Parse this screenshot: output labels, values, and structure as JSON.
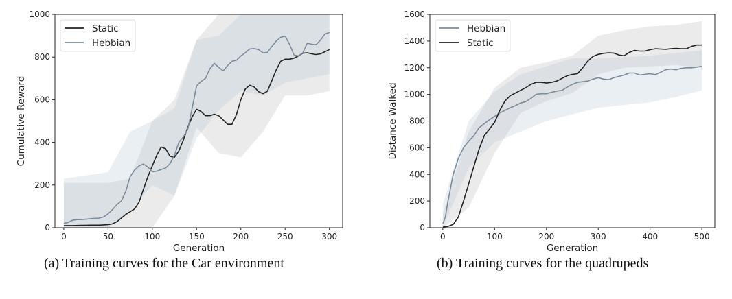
{
  "chart_data": [
    {
      "type": "line",
      "caption": "(a) Training curves for the Car environment",
      "xlabel": "Generation",
      "ylabel": "Cumulative Reward",
      "xlim": [
        -10,
        315
      ],
      "ylim": [
        0,
        1000
      ],
      "xticks": [
        0,
        50,
        100,
        150,
        200,
        250,
        300
      ],
      "yticks": [
        0,
        200,
        400,
        600,
        800,
        1000
      ],
      "grid": false,
      "legend": "top-left",
      "series": [
        {
          "name": "Static",
          "color": "#222222",
          "band_color": "#b8b8b8",
          "x": [
            0,
            10,
            20,
            30,
            40,
            50,
            55,
            60,
            65,
            70,
            75,
            80,
            85,
            90,
            95,
            100,
            105,
            110,
            115,
            120,
            125,
            130,
            135,
            140,
            145,
            150,
            155,
            160,
            165,
            170,
            175,
            180,
            185,
            190,
            195,
            200,
            205,
            210,
            215,
            220,
            225,
            230,
            235,
            240,
            245,
            250,
            255,
            260,
            265,
            270,
            275,
            280,
            285,
            290,
            300
          ],
          "y": [
            10,
            10,
            11,
            12,
            12,
            14,
            18,
            28,
            45,
            62,
            75,
            88,
            120,
            180,
            240,
            290,
            340,
            378,
            370,
            335,
            330,
            360,
            410,
            470,
            520,
            555,
            545,
            525,
            525,
            532,
            525,
            505,
            485,
            485,
            530,
            600,
            650,
            668,
            660,
            638,
            628,
            640,
            690,
            740,
            780,
            790,
            790,
            795,
            805,
            818,
            820,
            815,
            812,
            815,
            835
          ],
          "band_x": [
            0,
            25,
            50,
            75,
            100,
            125,
            150,
            175,
            200,
            225,
            250,
            275,
            300
          ],
          "band_lower": [
            0,
            0,
            0,
            0,
            0,
            150,
            470,
            350,
            330,
            450,
            620,
            620,
            640
          ],
          "band_upper": [
            210,
            210,
            210,
            230,
            500,
            600,
            880,
            1000,
            1000,
            1000,
            1000,
            1000,
            1000
          ]
        },
        {
          "name": "Hebbian",
          "color": "#7a8c9c",
          "band_color": "#b4c6d8",
          "x": [
            0,
            5,
            10,
            15,
            20,
            30,
            40,
            45,
            50,
            55,
            60,
            65,
            70,
            75,
            80,
            85,
            90,
            95,
            100,
            105,
            110,
            115,
            120,
            125,
            130,
            135,
            140,
            145,
            150,
            155,
            160,
            165,
            170,
            175,
            180,
            185,
            190,
            195,
            200,
            205,
            210,
            215,
            220,
            225,
            230,
            235,
            240,
            245,
            250,
            255,
            260,
            265,
            270,
            275,
            280,
            285,
            290,
            295,
            300
          ],
          "y": [
            20,
            25,
            35,
            38,
            38,
            42,
            45,
            50,
            65,
            85,
            108,
            125,
            170,
            240,
            270,
            290,
            298,
            285,
            262,
            265,
            273,
            280,
            300,
            340,
            400,
            425,
            460,
            560,
            665,
            685,
            700,
            745,
            770,
            752,
            735,
            760,
            780,
            785,
            805,
            820,
            838,
            840,
            835,
            820,
            822,
            850,
            875,
            893,
            898,
            860,
            810,
            805,
            820,
            865,
            860,
            858,
            880,
            908,
            915
          ],
          "band_x": [
            0,
            25,
            50,
            75,
            100,
            125,
            150,
            175,
            200,
            225,
            250,
            275,
            300
          ],
          "band_lower": [
            0,
            0,
            0,
            80,
            200,
            150,
            420,
            550,
            640,
            620,
            680,
            700,
            720
          ],
          "band_upper": [
            230,
            245,
            260,
            450,
            500,
            560,
            880,
            900,
            1000,
            1000,
            1000,
            1000,
            1000
          ]
        }
      ]
    },
    {
      "type": "line",
      "caption": "(b) Training curves for the quadrupeds",
      "xlabel": "Generation",
      "ylabel": "Distance Walked",
      "xlim": [
        -25,
        525
      ],
      "ylim": [
        0,
        1600
      ],
      "xticks": [
        0,
        100,
        200,
        300,
        400,
        500
      ],
      "yticks": [
        0,
        200,
        400,
        600,
        800,
        1000,
        1200,
        1400,
        1600
      ],
      "grid": false,
      "legend": "top-left",
      "series": [
        {
          "name": "Hebbian",
          "color": "#7a8c9c",
          "band_color": "#b4c6d8",
          "x": [
            0,
            5,
            10,
            20,
            30,
            40,
            50,
            60,
            70,
            80,
            90,
            100,
            110,
            120,
            130,
            140,
            150,
            160,
            170,
            180,
            190,
            200,
            210,
            220,
            230,
            240,
            250,
            260,
            270,
            280,
            290,
            300,
            310,
            320,
            330,
            340,
            350,
            360,
            370,
            380,
            390,
            400,
            410,
            420,
            430,
            440,
            450,
            460,
            470,
            480,
            490,
            500
          ],
          "y": [
            30,
            80,
            200,
            400,
            520,
            600,
            650,
            690,
            750,
            780,
            810,
            835,
            860,
            880,
            900,
            915,
            935,
            945,
            970,
            1000,
            1005,
            1005,
            1015,
            1025,
            1030,
            1055,
            1075,
            1090,
            1095,
            1100,
            1115,
            1125,
            1115,
            1110,
            1125,
            1135,
            1145,
            1160,
            1160,
            1145,
            1150,
            1155,
            1148,
            1165,
            1185,
            1190,
            1185,
            1195,
            1200,
            1200,
            1205,
            1210
          ],
          "band_x": [
            0,
            50,
            100,
            150,
            200,
            250,
            300,
            350,
            400,
            450,
            500
          ],
          "band_lower": [
            0,
            450,
            640,
            720,
            800,
            850,
            900,
            920,
            940,
            980,
            1030
          ],
          "band_upper": [
            180,
            800,
            1020,
            1150,
            1210,
            1270,
            1270,
            1280,
            1290,
            1310,
            1330
          ]
        },
        {
          "name": "Static",
          "color": "#222222",
          "band_color": "#b8b8b8",
          "x": [
            0,
            10,
            20,
            30,
            40,
            50,
            60,
            70,
            80,
            90,
            100,
            110,
            120,
            130,
            140,
            150,
            160,
            170,
            180,
            190,
            200,
            210,
            220,
            230,
            240,
            250,
            260,
            270,
            280,
            290,
            300,
            310,
            320,
            330,
            340,
            350,
            360,
            370,
            380,
            390,
            400,
            410,
            420,
            430,
            440,
            450,
            460,
            470,
            480,
            490,
            500
          ],
          "y": [
            5,
            10,
            25,
            80,
            200,
            330,
            460,
            590,
            690,
            740,
            790,
            880,
            950,
            990,
            1010,
            1030,
            1050,
            1075,
            1090,
            1090,
            1085,
            1090,
            1100,
            1120,
            1140,
            1150,
            1155,
            1200,
            1250,
            1285,
            1300,
            1308,
            1312,
            1310,
            1295,
            1290,
            1315,
            1330,
            1325,
            1325,
            1335,
            1342,
            1340,
            1338,
            1342,
            1345,
            1342,
            1342,
            1360,
            1370,
            1370
          ],
          "band_x": [
            0,
            50,
            100,
            150,
            200,
            250,
            300,
            350,
            400,
            450,
            500
          ],
          "band_lower": [
            0,
            150,
            560,
            860,
            950,
            1010,
            1150,
            1200,
            1210,
            1220,
            1200
          ],
          "band_upper": [
            100,
            720,
            1050,
            1200,
            1240,
            1290,
            1440,
            1480,
            1510,
            1520,
            1550
          ]
        }
      ]
    }
  ]
}
